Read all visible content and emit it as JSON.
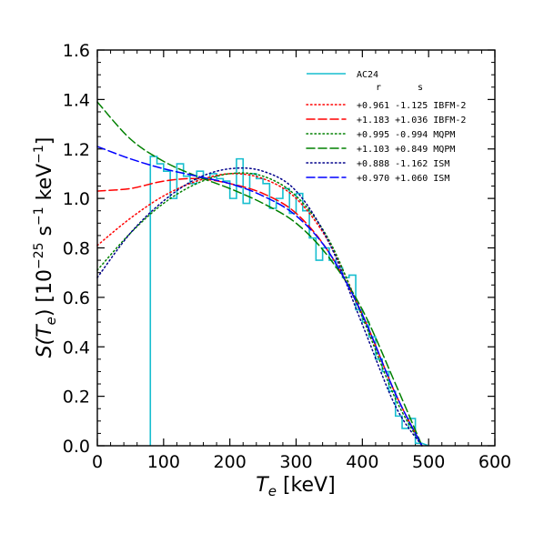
{
  "chart_data": {
    "type": "line",
    "title": "",
    "xlabel": {
      "main": "T",
      "sub": "e",
      "rest": " [keV]"
    },
    "ylabel": {
      "pre": "S(T",
      "sub": "e",
      "post": ") [10",
      "exp1": "−25",
      "mid": " s",
      "exp2": "−1",
      "mid2": " keV",
      "exp3": "−1",
      "end": "]"
    },
    "xlim": [
      0,
      600
    ],
    "ylim": [
      0,
      1.6
    ],
    "xticks": [
      0,
      100,
      200,
      300,
      400,
      500,
      600
    ],
    "yticks": [
      0.0,
      0.2,
      0.4,
      0.6,
      0.8,
      1.0,
      1.2,
      1.4,
      1.6
    ],
    "xtick_labels": [
      "0",
      "100",
      "200",
      "300",
      "400",
      "500",
      "600"
    ],
    "ytick_labels": [
      "0.0",
      "0.2",
      "0.4",
      "0.6",
      "0.8",
      "1.0",
      "1.2",
      "1.4",
      "1.6"
    ],
    "grid": false,
    "legend": {
      "placement": "top-right",
      "header": [
        "r",
        "s"
      ]
    },
    "histogram": {
      "name": "AC24",
      "color": "#17becf",
      "edges": [
        80,
        90,
        100,
        110,
        120,
        130,
        140,
        150,
        160,
        170,
        180,
        190,
        200,
        210,
        220,
        230,
        240,
        250,
        260,
        270,
        280,
        290,
        300,
        310,
        320,
        330,
        340,
        350,
        360,
        370,
        380,
        390,
        400,
        410,
        420,
        430,
        440,
        450,
        460,
        470,
        480,
        490
      ],
      "values": [
        1.17,
        1.14,
        1.11,
        1.0,
        1.14,
        1.09,
        1.06,
        1.11,
        1.08,
        1.1,
        1.08,
        1.07,
        1.0,
        1.16,
        0.98,
        1.1,
        1.08,
        1.06,
        0.96,
        1.0,
        1.04,
        0.94,
        1.02,
        0.95,
        0.84,
        0.75,
        0.8,
        0.75,
        0.72,
        0.68,
        0.69,
        0.55,
        0.5,
        0.44,
        0.35,
        0.3,
        0.22,
        0.12,
        0.07,
        0.11,
        0.01
      ]
    },
    "series": [
      {
        "r": "+0.961",
        "s": "-1.125",
        "model": "IBFM-2",
        "color": "#ff0000",
        "style": "dotted",
        "x": [
          0,
          50,
          100,
          150,
          200,
          250,
          300,
          350,
          400,
          450,
          490
        ],
        "y": [
          0.81,
          0.92,
          1.01,
          1.07,
          1.1,
          1.08,
          1.0,
          0.82,
          0.53,
          0.21,
          0.0
        ]
      },
      {
        "r": "+1.183",
        "s": "+1.036",
        "model": "IBFM-2",
        "color": "#ff0000",
        "style": "dashed",
        "x": [
          0,
          50,
          100,
          150,
          200,
          250,
          300,
          350,
          400,
          450,
          490
        ],
        "y": [
          1.03,
          1.04,
          1.07,
          1.08,
          1.06,
          1.02,
          0.94,
          0.78,
          0.53,
          0.21,
          0.0
        ]
      },
      {
        "r": "+0.995",
        "s": "-0.994",
        "model": "MQPM",
        "color": "#008000",
        "style": "dotted",
        "x": [
          0,
          50,
          100,
          150,
          200,
          250,
          300,
          350,
          400,
          450,
          490
        ],
        "y": [
          0.71,
          0.86,
          0.98,
          1.06,
          1.1,
          1.09,
          1.01,
          0.83,
          0.52,
          0.19,
          0.0
        ]
      },
      {
        "r": "+1.103",
        "s": "+0.849",
        "model": "MQPM",
        "color": "#008000",
        "style": "dashed",
        "x": [
          0,
          50,
          100,
          150,
          200,
          250,
          300,
          350,
          400,
          450,
          490
        ],
        "y": [
          1.39,
          1.24,
          1.15,
          1.09,
          1.04,
          0.98,
          0.9,
          0.76,
          0.55,
          0.25,
          0.0
        ]
      },
      {
        "r": "+0.888",
        "s": "-1.162",
        "model": "ISM",
        "color": "#00008b",
        "style": "dotted",
        "x": [
          0,
          50,
          100,
          150,
          200,
          250,
          300,
          350,
          400,
          450,
          490
        ],
        "y": [
          0.68,
          0.86,
          0.99,
          1.08,
          1.12,
          1.11,
          1.03,
          0.82,
          0.49,
          0.16,
          0.0
        ]
      },
      {
        "r": "+0.970",
        "s": "+1.060",
        "model": "ISM",
        "color": "#0000ff",
        "style": "dashed",
        "x": [
          0,
          50,
          100,
          150,
          200,
          250,
          300,
          350,
          400,
          450,
          490
        ],
        "y": [
          1.21,
          1.16,
          1.12,
          1.09,
          1.06,
          1.01,
          0.93,
          0.78,
          0.53,
          0.21,
          0.0
        ]
      }
    ]
  }
}
